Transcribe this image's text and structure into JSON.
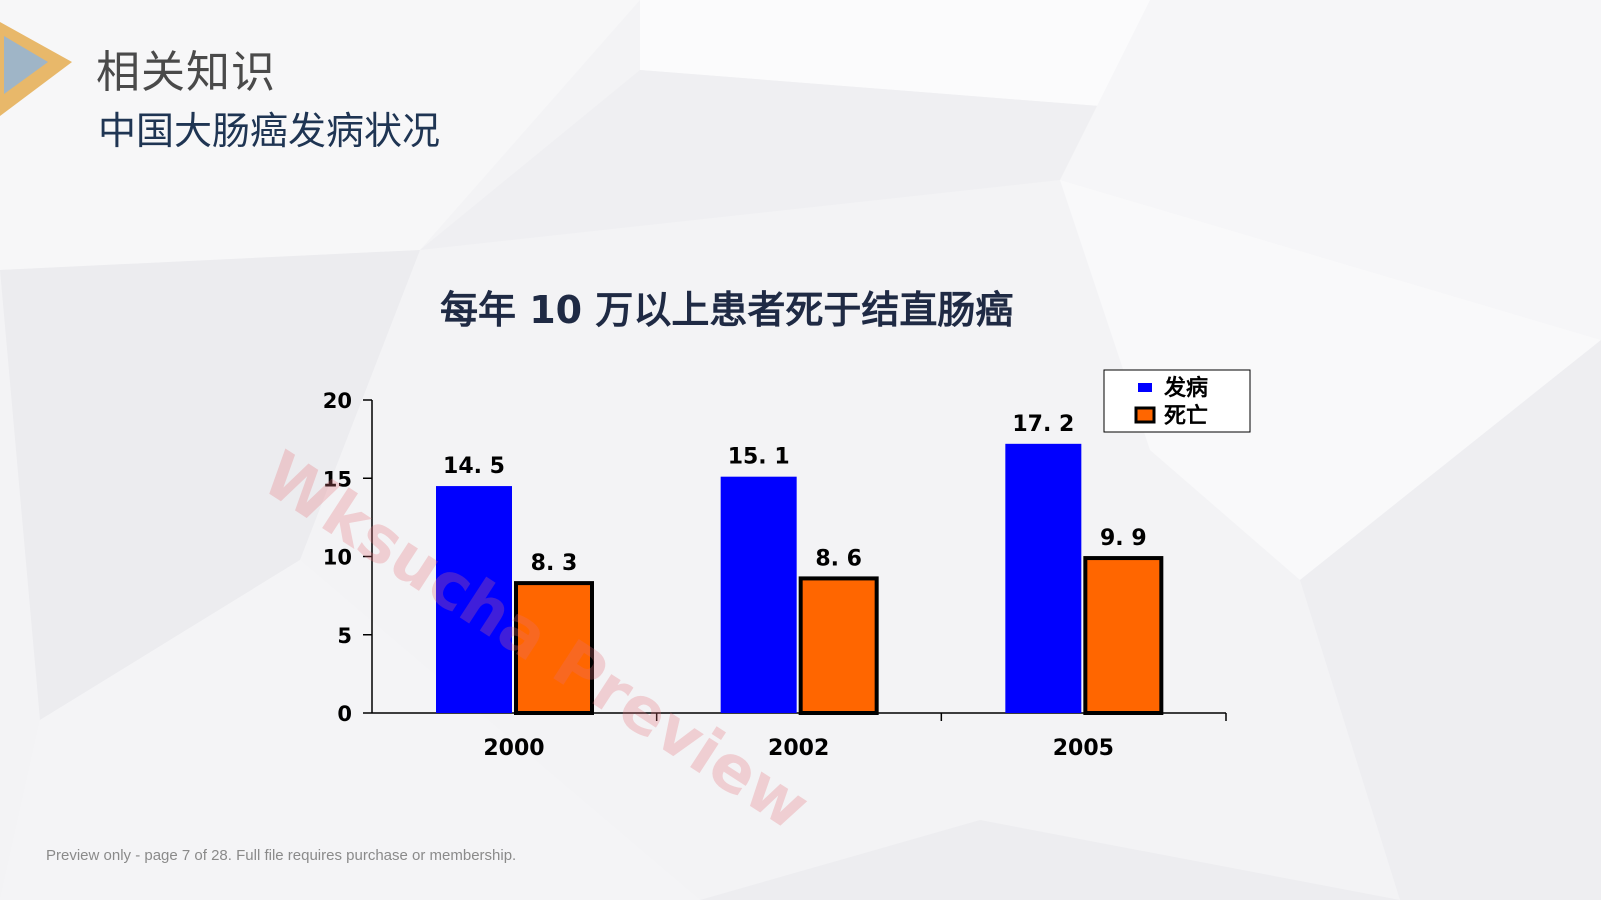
{
  "slide": {
    "title": "相关知识",
    "subtitle": "中国大肠癌发病状况",
    "footer": "Preview only - page 7 of 28. Full file requires purchase or membership.",
    "watermark": "Wksucha Preview"
  },
  "colors": {
    "accent_gold": "#e8b86a",
    "accent_blue": "#9fb5c7",
    "series_incidence": "#0000ff",
    "series_death": "#ff6600"
  },
  "chart_data": {
    "type": "bar",
    "title": "每年  10  万以上患者死于结直肠癌",
    "xlabel": "",
    "ylabel": "",
    "categories": [
      "2000",
      "2002",
      "2005"
    ],
    "ylim": [
      0,
      20
    ],
    "yticks": [
      "0",
      "5",
      "10",
      "15",
      "20"
    ],
    "legend": "top-right",
    "series": [
      {
        "name": "发病",
        "values": [
          14.5,
          15.1,
          17.2
        ],
        "labels": [
          "14. 5",
          "15. 1",
          "17. 2"
        ],
        "color": "#0000ff"
      },
      {
        "name": "死亡",
        "values": [
          8.3,
          8.6,
          9.9
        ],
        "labels": [
          "8. 3",
          "8. 6",
          "9. 9"
        ],
        "color": "#ff6600"
      }
    ]
  }
}
